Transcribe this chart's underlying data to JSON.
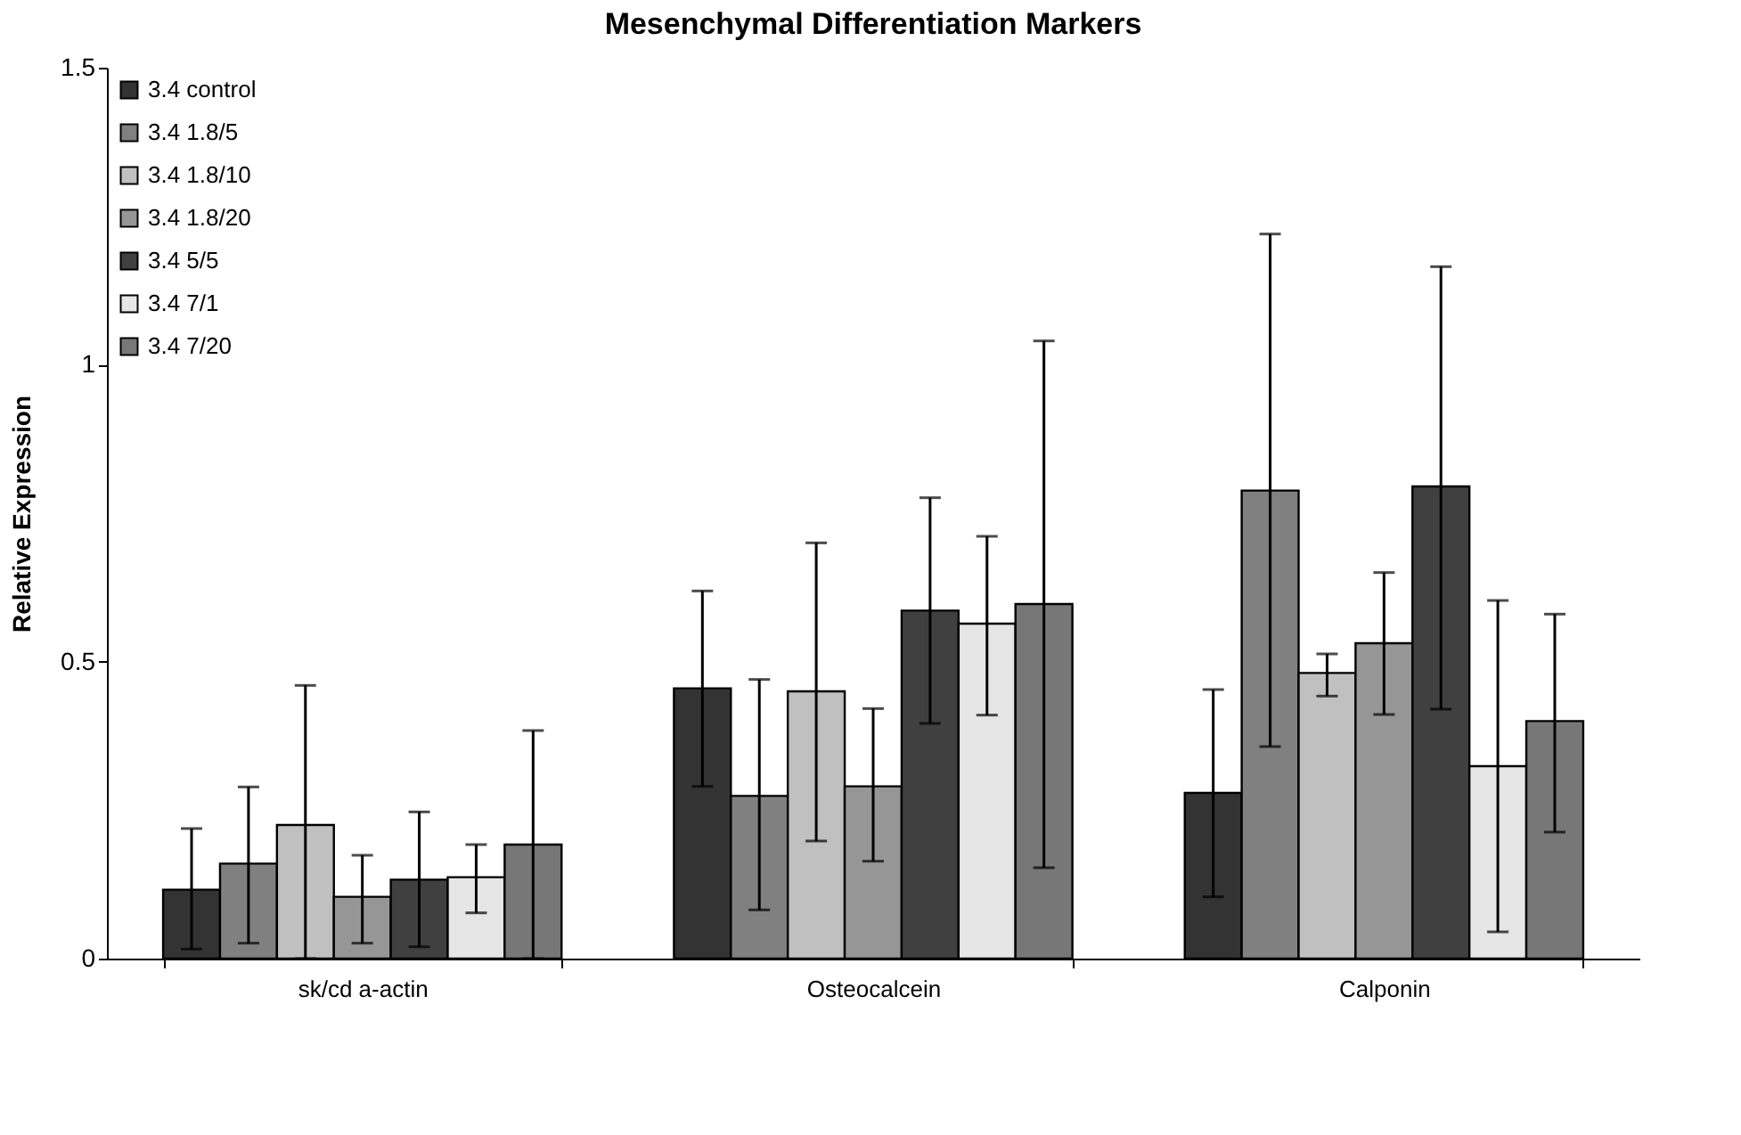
{
  "chart_data": {
    "type": "bar",
    "title": "Mesenchymal Differentiation Markers",
    "ylabel": "Relative Expression",
    "categories": [
      "sk/cd a-actin",
      "Osteocalcein",
      "Calponin"
    ],
    "series": [
      {
        "name": "3.4 control",
        "color": "#333333",
        "values": [
          0.116,
          0.455,
          0.279
        ],
        "errors": [
          [
            0.016,
            0.219
          ],
          [
            0.29,
            0.619
          ],
          [
            0.104,
            0.453
          ]
        ]
      },
      {
        "name": "3.4 1.8/5",
        "color": "#808080",
        "values": [
          0.16,
          0.274,
          0.788
        ],
        "errors": [
          [
            0.026,
            0.289
          ],
          [
            0.082,
            0.47
          ],
          [
            0.357,
            1.22
          ]
        ]
      },
      {
        "name": "3.4 1.8/10",
        "color": "#c0c0c0",
        "values": [
          0.225,
          0.45,
          0.481
        ],
        "errors": [
          [
            0.0,
            0.46
          ],
          [
            0.198,
            0.7
          ],
          [
            0.442,
            0.513
          ]
        ]
      },
      {
        "name": "3.4 1.8/20",
        "color": "#969696",
        "values": [
          0.104,
          0.29,
          0.531
        ],
        "errors": [
          [
            0.026,
            0.174
          ],
          [
            0.164,
            0.421
          ],
          [
            0.411,
            0.65
          ]
        ]
      },
      {
        "name": "3.4 5/5",
        "color": "#404040",
        "values": [
          0.133,
          0.586,
          0.795
        ],
        "errors": [
          [
            0.02,
            0.247
          ],
          [
            0.396,
            0.776
          ],
          [
            0.42,
            1.165
          ]
        ]
      },
      {
        "name": "3.4 7/1",
        "color": "#e6e6e6",
        "values": [
          0.137,
          0.564,
          0.324
        ],
        "errors": [
          [
            0.077,
            0.192
          ],
          [
            0.41,
            0.711
          ],
          [
            0.045,
            0.603
          ]
        ]
      },
      {
        "name": "3.4 7/20",
        "color": "#777777",
        "values": [
          0.192,
          0.597,
          0.4
        ],
        "errors": [
          [
            0.0,
            0.384
          ],
          [
            0.153,
            1.04
          ],
          [
            0.213,
            0.58
          ]
        ]
      }
    ],
    "ylim": [
      0,
      1.5
    ],
    "yticks": [
      0,
      0.5,
      1,
      1.5
    ],
    "grid": false,
    "legend": "top left"
  }
}
